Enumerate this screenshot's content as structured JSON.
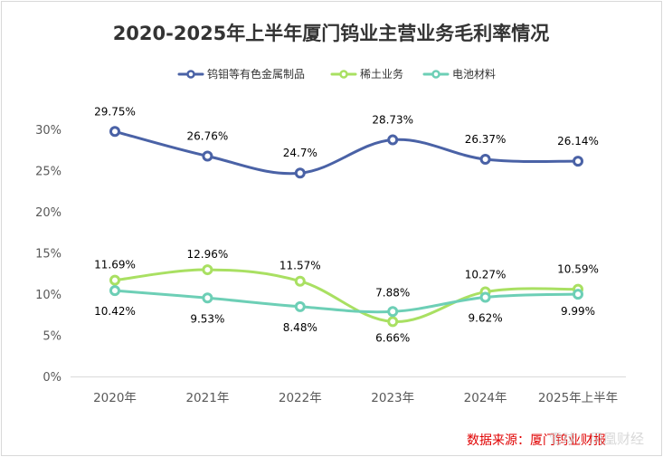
{
  "chart_data": {
    "type": "line",
    "title": "2020-2025年上半年厦门钨业主营业务毛利率情况",
    "categories": [
      "2020年",
      "2021年",
      "2022年",
      "2023年",
      "2024年",
      "2025年上半年"
    ],
    "ylim": [
      0,
      30
    ],
    "yticks": [
      "0%",
      "5%",
      "10%",
      "15%",
      "20%",
      "25%",
      "30%"
    ],
    "ytick_values": [
      0,
      5,
      10,
      15,
      20,
      25,
      30
    ],
    "grid": false,
    "legend_position": "top-center",
    "series": [
      {
        "name": "钨钼等有色金属制品",
        "color": "#4a62a6",
        "values": [
          29.75,
          26.76,
          24.7,
          28.73,
          26.37,
          26.14
        ],
        "labels": [
          "29.75%",
          "26.76%",
          "24.7%",
          "28.73%",
          "26.37%",
          "26.14%"
        ]
      },
      {
        "name": "稀土业务",
        "color": "#a9e062",
        "values": [
          11.69,
          12.96,
          11.57,
          6.66,
          10.27,
          10.59
        ],
        "labels": [
          "11.69%",
          "12.96%",
          "11.57%",
          "6.66%",
          "10.27%",
          "10.59%"
        ]
      },
      {
        "name": "电池材料",
        "color": "#6dcfb6",
        "values": [
          10.42,
          9.53,
          8.48,
          7.88,
          9.62,
          9.99
        ],
        "labels": [
          "10.42%",
          "9.53%",
          "8.48%",
          "7.88%",
          "9.62%",
          "9.99%"
        ]
      }
    ],
    "source_note": "数据来源：厦门钨业财报",
    "watermark": "雪球：凤凰财经"
  }
}
